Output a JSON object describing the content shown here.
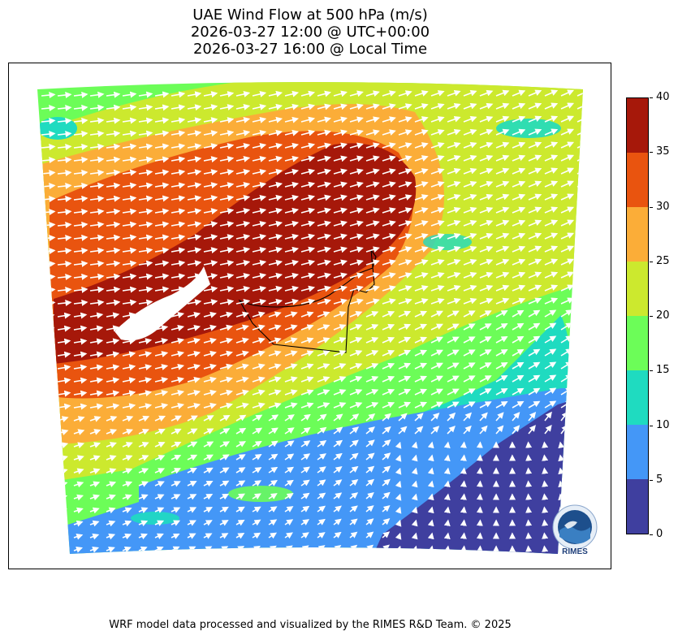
{
  "title": {
    "line1": "UAE Wind Flow at 500 hPa (m/s)",
    "line2": "2026-03-27 12:00 @ UTC+00:00",
    "line3": "2026-03-27 16:00 @ Local Time"
  },
  "colorbar": {
    "ticks": [
      "0",
      "5",
      "10",
      "15",
      "20",
      "25",
      "30",
      "35",
      "40"
    ],
    "levels": [
      {
        "from": 0,
        "to": 5,
        "color": "#3f3f9f"
      },
      {
        "from": 5,
        "to": 10,
        "color": "#4497f7"
      },
      {
        "from": 10,
        "to": 15,
        "color": "#1fdbc0"
      },
      {
        "from": 15,
        "to": 20,
        "color": "#6cfd58"
      },
      {
        "from": 20,
        "to": 25,
        "color": "#cce92e"
      },
      {
        "from": 25,
        "to": 30,
        "color": "#fbad38"
      },
      {
        "from": 30,
        "to": 35,
        "color": "#e9540f"
      },
      {
        "from": 35,
        "to": 40,
        "color": "#a6180a"
      }
    ]
  },
  "logo": {
    "text": "RIMES"
  },
  "credit": "WRF model data processed and visualized by the RIMES R&D Team. © 2025"
}
